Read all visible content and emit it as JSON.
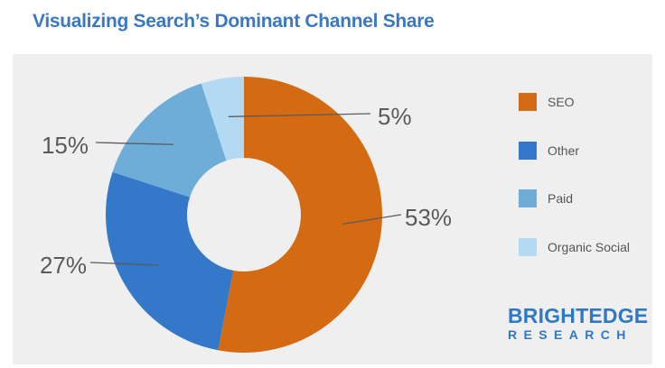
{
  "chart_data": {
    "type": "pie",
    "title": "Visualizing Search’s Dominant Channel Share",
    "donut": true,
    "categories": [
      "SEO",
      "Other",
      "Paid",
      "Organic Social"
    ],
    "values": [
      53,
      27,
      15,
      5
    ],
    "value_labels": [
      "53%",
      "27%",
      "15%",
      "5%"
    ],
    "colors": [
      "#d46b13",
      "#3478c9",
      "#6fadd9",
      "#b4daf3"
    ],
    "legend_position": "right"
  },
  "logo": {
    "top": "BRIGHTEDGE",
    "bottom": "RESEARCH"
  }
}
